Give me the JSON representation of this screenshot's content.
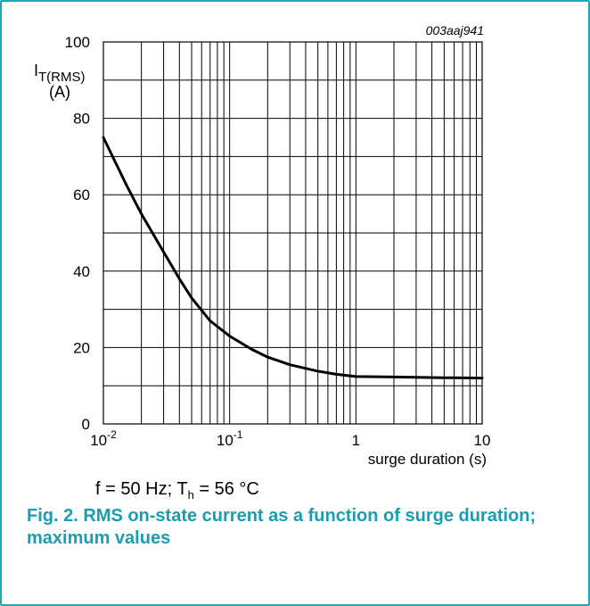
{
  "figure_id": "003aaj941",
  "chart_data": {
    "type": "line",
    "title": "",
    "x_scale": "log",
    "xlim": [
      0.01,
      10
    ],
    "ylim": [
      0,
      100
    ],
    "xlabel": "surge duration (s)",
    "ylabel_main": "I",
    "ylabel_sub": "T(RMS)",
    "ylabel_unit": "(A)",
    "y_ticks": [
      0,
      20,
      40,
      60,
      80,
      100
    ],
    "x_ticks": [
      {
        "value": 0.01,
        "base": "10",
        "exp": "-2"
      },
      {
        "value": 0.1,
        "base": "10",
        "exp": "-1"
      },
      {
        "value": 1,
        "base": "1",
        "exp": ""
      },
      {
        "value": 10,
        "base": "10",
        "exp": ""
      }
    ],
    "grid": true,
    "series": [
      {
        "x": [
          0.01,
          0.015,
          0.02,
          0.03,
          0.04,
          0.05,
          0.07,
          0.1,
          0.15,
          0.2,
          0.3,
          0.5,
          0.7,
          1,
          2,
          5,
          10
        ],
        "y": [
          75,
          63,
          55,
          45,
          38,
          33,
          27,
          23,
          19.5,
          17.5,
          15.5,
          13.8,
          13,
          12.4,
          12.3,
          12.1,
          12
        ]
      }
    ]
  },
  "condition": {
    "prefix": "f = 50 Hz; T",
    "sub": "h",
    "suffix": " = 56 °C"
  },
  "caption": "Fig. 2. RMS on-state current as a function of surge duration; maximum values"
}
